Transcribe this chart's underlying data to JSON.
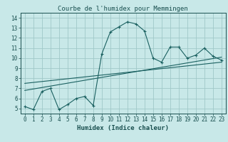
{
  "title": "Courbe de l'humidex pour Memmingen",
  "xlabel": "Humidex (Indice chaleur)",
  "bg_color": "#c8e8e8",
  "grid_color": "#a0c8c8",
  "line_color": "#1a6060",
  "xlim": [
    -0.5,
    23.5
  ],
  "ylim": [
    4.5,
    14.5
  ],
  "xticks": [
    0,
    1,
    2,
    3,
    4,
    5,
    6,
    7,
    8,
    9,
    10,
    11,
    12,
    13,
    14,
    15,
    16,
    17,
    18,
    19,
    20,
    21,
    22,
    23
  ],
  "yticks": [
    5,
    6,
    7,
    8,
    9,
    10,
    11,
    12,
    13,
    14
  ],
  "main_x": [
    0,
    1,
    2,
    3,
    4,
    5,
    6,
    7,
    8,
    9,
    10,
    11,
    12,
    13,
    14,
    15,
    16,
    17,
    18,
    19,
    20,
    21,
    22,
    23
  ],
  "main_y": [
    5.2,
    4.9,
    6.7,
    7.0,
    4.9,
    5.4,
    6.0,
    6.2,
    5.3,
    10.4,
    12.6,
    13.1,
    13.6,
    13.4,
    12.7,
    10.0,
    9.6,
    11.1,
    11.1,
    10.0,
    10.3,
    11.0,
    10.2,
    9.8
  ],
  "line1_x": [
    0,
    23
  ],
  "line1_y": [
    6.8,
    10.1
  ],
  "line2_x": [
    0,
    23
  ],
  "line2_y": [
    7.5,
    9.6
  ],
  "font_color": "#1a5050",
  "title_fontsize": 6.5,
  "label_fontsize": 6.5,
  "tick_fontsize": 5.5
}
